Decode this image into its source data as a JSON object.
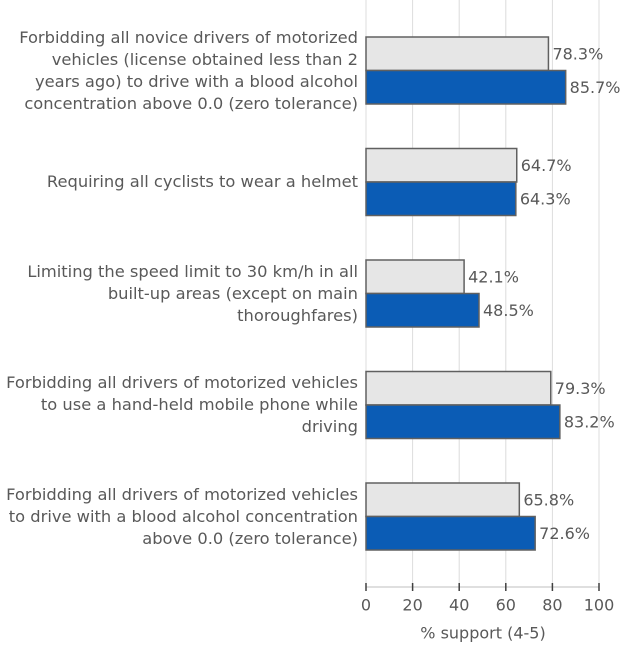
{
  "chart_data": {
    "type": "bar",
    "orientation": "horizontal",
    "categories": [
      "Forbidding all novice drivers of motorized vehicles (license obtained less than 2 years ago) to drive with a blood alcohol concentration above 0.0 (zero tolerance)",
      "Requiring all cyclists to wear a helmet",
      "Limiting the speed limit to 30 km/h in all built-up areas (except on main thoroughfares)",
      "Forbidding all drivers of motorized vehicles to use a hand-held mobile phone while driving",
      "Forbidding all drivers of motorized vehicles to drive with a blood alcohol concentration above 0.0 (zero tolerance)"
    ],
    "series": [
      {
        "color": "#e6e6e6",
        "values": [
          78.3,
          64.7,
          42.1,
          79.3,
          65.8
        ],
        "value_labels": [
          "78.3%",
          "64.7%",
          "42.1%",
          "79.3%",
          "65.8%"
        ]
      },
      {
        "color": "#0b5cb5",
        "values": [
          85.7,
          64.3,
          48.5,
          83.2,
          72.6
        ],
        "value_labels": [
          "85.7%",
          "64.3%",
          "48.5%",
          "83.2%",
          "72.6%"
        ]
      }
    ],
    "xlabel": "% support (4-5)",
    "xlim": [
      0,
      100
    ],
    "xticks": [
      0,
      20,
      40,
      60,
      80,
      100
    ],
    "grid": true
  }
}
